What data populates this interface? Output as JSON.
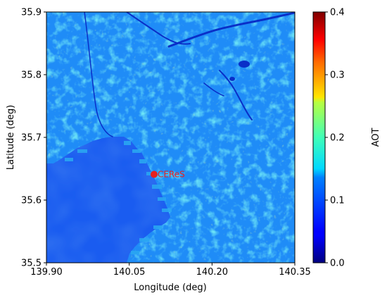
{
  "chart_data": {
    "type": "heatmap",
    "title": "",
    "xlabel": "Longitude (deg)",
    "ylabel": "Latitude (deg)",
    "xlim": [
      139.9,
      140.35
    ],
    "ylim": [
      35.5,
      35.9
    ],
    "x_ticks": [
      {
        "value": 139.9,
        "label": "139.90"
      },
      {
        "value": 140.05,
        "label": "140.05"
      },
      {
        "value": 140.2,
        "label": "140.20"
      },
      {
        "value": 140.35,
        "label": "140.35"
      }
    ],
    "y_ticks": [
      {
        "value": 35.5,
        "label": "35.5"
      },
      {
        "value": 35.6,
        "label": "35.6"
      },
      {
        "value": 35.7,
        "label": "35.7"
      },
      {
        "value": 35.8,
        "label": "35.8"
      },
      {
        "value": 35.9,
        "label": "35.9"
      }
    ],
    "colorbar": {
      "label": "AOT",
      "colormap": "jet",
      "range": [
        0.0,
        0.4
      ],
      "ticks": [
        {
          "value": 0.0,
          "label": "0.0"
        },
        {
          "value": 0.1,
          "label": "0.1"
        },
        {
          "value": 0.2,
          "label": "0.2"
        },
        {
          "value": 0.3,
          "label": "0.3"
        },
        {
          "value": 0.4,
          "label": "0.4"
        }
      ]
    },
    "marker": {
      "label": "CEReS",
      "lon": 140.095,
      "lat": 35.641,
      "color": "#e8201e"
    },
    "field_summary": {
      "sea_aot": 0.07,
      "land_aot_typical": 0.13,
      "land_aot_max": 0.22
    }
  },
  "colors": {
    "sea": "#1a5cf0",
    "land_base": "#1f8cf7",
    "land_bright": "#26c8ee",
    "land_hot": "#9ee866",
    "river": "#0a2fc8"
  }
}
